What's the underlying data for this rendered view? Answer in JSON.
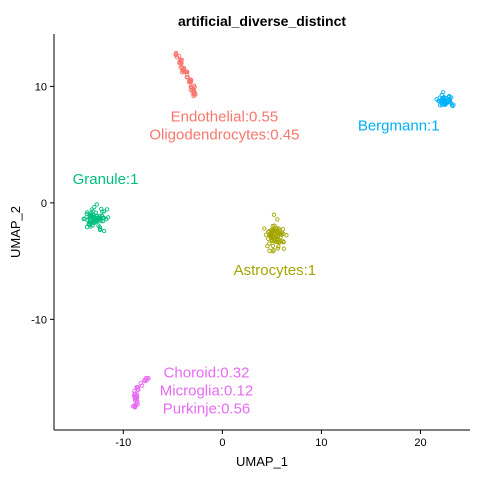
{
  "chart_data": {
    "type": "scatter",
    "title": "artificial_diverse_distinct",
    "xlabel": "UMAP_1",
    "ylabel": "UMAP_2",
    "xlim": [
      -17,
      25
    ],
    "ylim": [
      -19.5,
      14.5
    ],
    "x_ticks": [
      -10,
      0,
      10,
      20
    ],
    "x_tick_labels": [
      "-10",
      "0",
      "10",
      "20"
    ],
    "y_ticks": [
      10,
      0,
      -10
    ],
    "y_tick_labels": [
      "10",
      "0",
      "-10"
    ],
    "grid": false,
    "legend": "none",
    "clusters": [
      {
        "id": "endothelial-oligo",
        "color": "#F8766D",
        "shape": "streak",
        "path": [
          [
            -4.6,
            12.8
          ],
          [
            -4.0,
            11.6
          ],
          [
            -3.2,
            10.4
          ],
          [
            -2.8,
            9.2
          ]
        ],
        "spread": 0.5,
        "count": 55,
        "label_lines": [
          "Endothelial:0.55",
          "Oligodendrocytes:0.45"
        ],
        "label_anchor": [
          0.2,
          7.0
        ]
      },
      {
        "id": "bergmann",
        "color": "#00B0F6",
        "shape": "blob",
        "center": [
          22.5,
          8.7
        ],
        "spread": [
          0.7,
          0.55
        ],
        "count": 45,
        "label_lines": [
          "Bergmann:1"
        ],
        "label_anchor": [
          17.8,
          6.2
        ]
      },
      {
        "id": "granule",
        "color": "#00BF7D",
        "shape": "blob",
        "center": [
          -12.8,
          -1.4
        ],
        "spread": [
          0.9,
          0.8
        ],
        "count": 70,
        "label_lines": [
          "Granule:1"
        ],
        "label_anchor": [
          -11.8,
          1.6
        ]
      },
      {
        "id": "astrocytes",
        "color": "#A3A500",
        "shape": "blob",
        "center": [
          5.3,
          -2.9
        ],
        "spread": [
          0.8,
          0.9
        ],
        "count": 70,
        "label_lines": [
          "Astrocytes:1"
        ],
        "label_anchor": [
          5.3,
          -6.2
        ]
      },
      {
        "id": "choroid-microglia-purkinje",
        "color": "#E76BF3",
        "shape": "streak",
        "path": [
          [
            -7.6,
            -15.0
          ],
          [
            -8.4,
            -15.7
          ],
          [
            -8.8,
            -16.4
          ],
          [
            -8.6,
            -17.1
          ],
          [
            -9.0,
            -17.6
          ]
        ],
        "spread": 0.35,
        "count": 40,
        "label_lines": [
          "Choroid:0.32",
          "Microglia:0.12",
          "Purkinje:0.56"
        ],
        "label_anchor": [
          -1.6,
          -15.0
        ]
      }
    ]
  }
}
